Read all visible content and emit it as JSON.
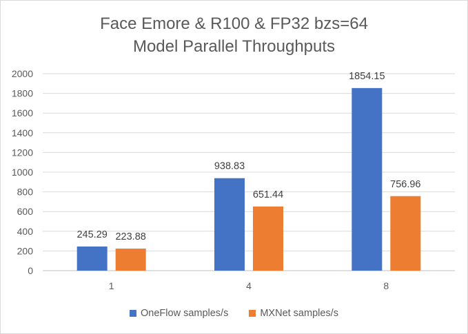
{
  "chart_data": {
    "type": "bar",
    "title": [
      "Face Emore & R100 & FP32 bzs=64",
      "Model Parallel Throughputs"
    ],
    "categories": [
      "1",
      "4",
      "8"
    ],
    "series": [
      {
        "name": "OneFlow samples/s",
        "color": "#4472c4",
        "values": [
          245.29,
          938.83,
          1854.15
        ],
        "labels": [
          "245.29",
          "938.83",
          "1854.15"
        ]
      },
      {
        "name": "MXNet samples/s",
        "color": "#ed7d31",
        "values": [
          223.88,
          651.44,
          756.96
        ],
        "labels": [
          "223.88",
          "651.44",
          "756.96"
        ]
      }
    ],
    "ylim": [
      0,
      2000
    ],
    "yticks": [
      0,
      200,
      400,
      600,
      800,
      1000,
      1200,
      1400,
      1600,
      1800,
      2000
    ],
    "grid": true,
    "legend_position": "bottom"
  }
}
